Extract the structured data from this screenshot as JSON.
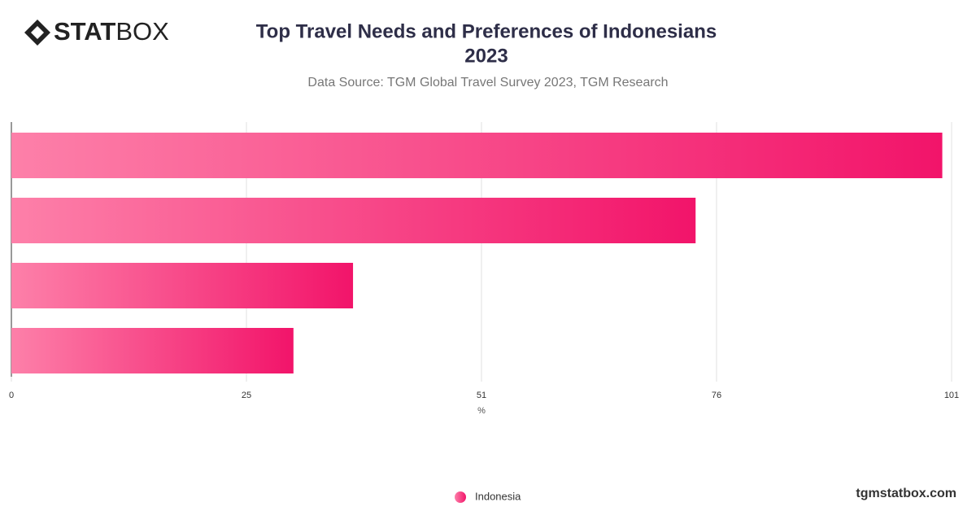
{
  "chart_data": {
    "type": "hbar",
    "logo": [
      "STAT",
      "BOX"
    ],
    "title": [
      "Top Travel Needs and Preferences of Indonesians",
      "2023"
    ],
    "subtitle": "Data Source: TGM Global Travel Survey 2023, TGM Research",
    "categories": [
      null,
      null,
      null,
      null
    ],
    "series": [
      {
        "name": "Indonesia",
        "color": "#f2146a",
        "values": [
          100,
          73.5,
          36.7,
          30.3
        ]
      }
    ],
    "gradient": [
      "#fd80a9",
      "#f2146a"
    ],
    "xlim": [
      0,
      101
    ],
    "xticks": [
      0,
      {
        "value": 25.25,
        "label": "25"
      },
      {
        "value": 50.5,
        "label": "51"
      },
      {
        "value": 75.75,
        "label": "76"
      },
      101
    ],
    "x_label": "%",
    "grid": true,
    "legend": "bottom",
    "footer": "tgmstatbox.com"
  }
}
